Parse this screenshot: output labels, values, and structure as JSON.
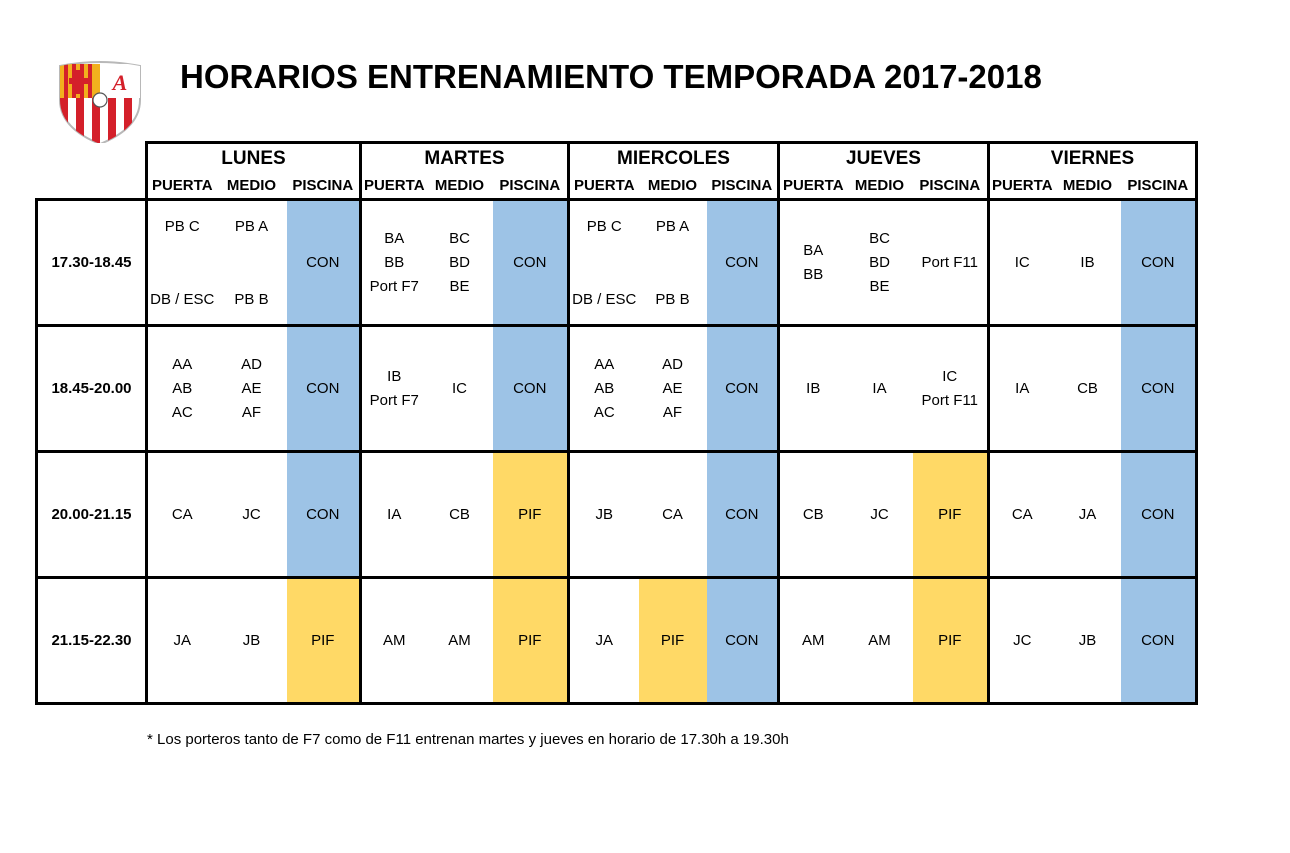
{
  "title": "HORARIOS ENTRENAMIENTO TEMPORADA 2017-2018",
  "logo": {
    "letters": "A",
    "colors": {
      "red": "#d4202a",
      "gold": "#f2b01e",
      "white": "#ffffff"
    }
  },
  "days": [
    "LUNES",
    "MARTES",
    "MIERCOLES",
    "JUEVES",
    "VIERNES"
  ],
  "subheaders": [
    "PUERTA",
    "MEDIO",
    "PISCINA"
  ],
  "colors": {
    "CON": "#9dc3e6",
    "PIF": "#ffd966"
  },
  "rows": [
    {
      "time": "17.30-18.45",
      "days": [
        [
          {
            "top": "PB C",
            "bottom": "DB / ESC"
          },
          {
            "top": "PB A",
            "bottom": "PB B"
          },
          [
            "CON"
          ]
        ],
        [
          [
            "BA",
            "BB",
            "Port F7"
          ],
          [
            "BC",
            "BD",
            "BE"
          ],
          [
            "CON"
          ]
        ],
        [
          {
            "top": "PB C",
            "bottom": "DB / ESC"
          },
          {
            "top": "PB A",
            "bottom": "PB B"
          },
          [
            "CON"
          ]
        ],
        [
          [
            "BA",
            "BB"
          ],
          [
            "BC",
            "BD",
            "BE"
          ],
          [
            "Port F11"
          ]
        ],
        [
          [
            "IC"
          ],
          [
            "IB"
          ],
          [
            "CON"
          ]
        ]
      ]
    },
    {
      "time": "18.45-20.00",
      "days": [
        [
          [
            "AA",
            "AB",
            "AC"
          ],
          [
            "AD",
            "AE",
            "AF"
          ],
          [
            "CON"
          ]
        ],
        [
          [
            "IB",
            "Port F7"
          ],
          [
            "IC"
          ],
          [
            "CON"
          ]
        ],
        [
          [
            "AA",
            "AB",
            "AC"
          ],
          [
            "AD",
            "AE",
            "AF"
          ],
          [
            "CON"
          ]
        ],
        [
          [
            "IB"
          ],
          [
            "IA"
          ],
          [
            "IC",
            "Port F11"
          ]
        ],
        [
          [
            "IA"
          ],
          [
            "CB"
          ],
          [
            "CON"
          ]
        ]
      ]
    },
    {
      "time": "20.00-21.15",
      "days": [
        [
          [
            "CA"
          ],
          [
            "JC"
          ],
          [
            "CON"
          ]
        ],
        [
          [
            "IA"
          ],
          [
            "CB"
          ],
          [
            "PIF"
          ]
        ],
        [
          [
            "JB"
          ],
          [
            "CA"
          ],
          [
            "CON"
          ]
        ],
        [
          [
            "CB"
          ],
          [
            "JC"
          ],
          [
            "PIF"
          ]
        ],
        [
          [
            "CA"
          ],
          [
            "JA"
          ],
          [
            "CON"
          ]
        ]
      ]
    },
    {
      "time": "21.15-22.30",
      "days": [
        [
          [
            "JA"
          ],
          [
            "JB"
          ],
          [
            "PIF"
          ]
        ],
        [
          [
            "AM"
          ],
          [
            "AM"
          ],
          [
            "PIF"
          ]
        ],
        [
          [
            "JA"
          ],
          [
            "PIF"
          ],
          [
            "CON"
          ]
        ],
        [
          [
            "AM"
          ],
          [
            "AM"
          ],
          [
            "PIF"
          ]
        ],
        [
          [
            "JC"
          ],
          [
            "JB"
          ],
          [
            "CON"
          ]
        ]
      ]
    }
  ],
  "footnote": "* Los porteros tanto de F7 como de F11 entrenan martes y jueves en horario de 17.30h a 19.30h"
}
